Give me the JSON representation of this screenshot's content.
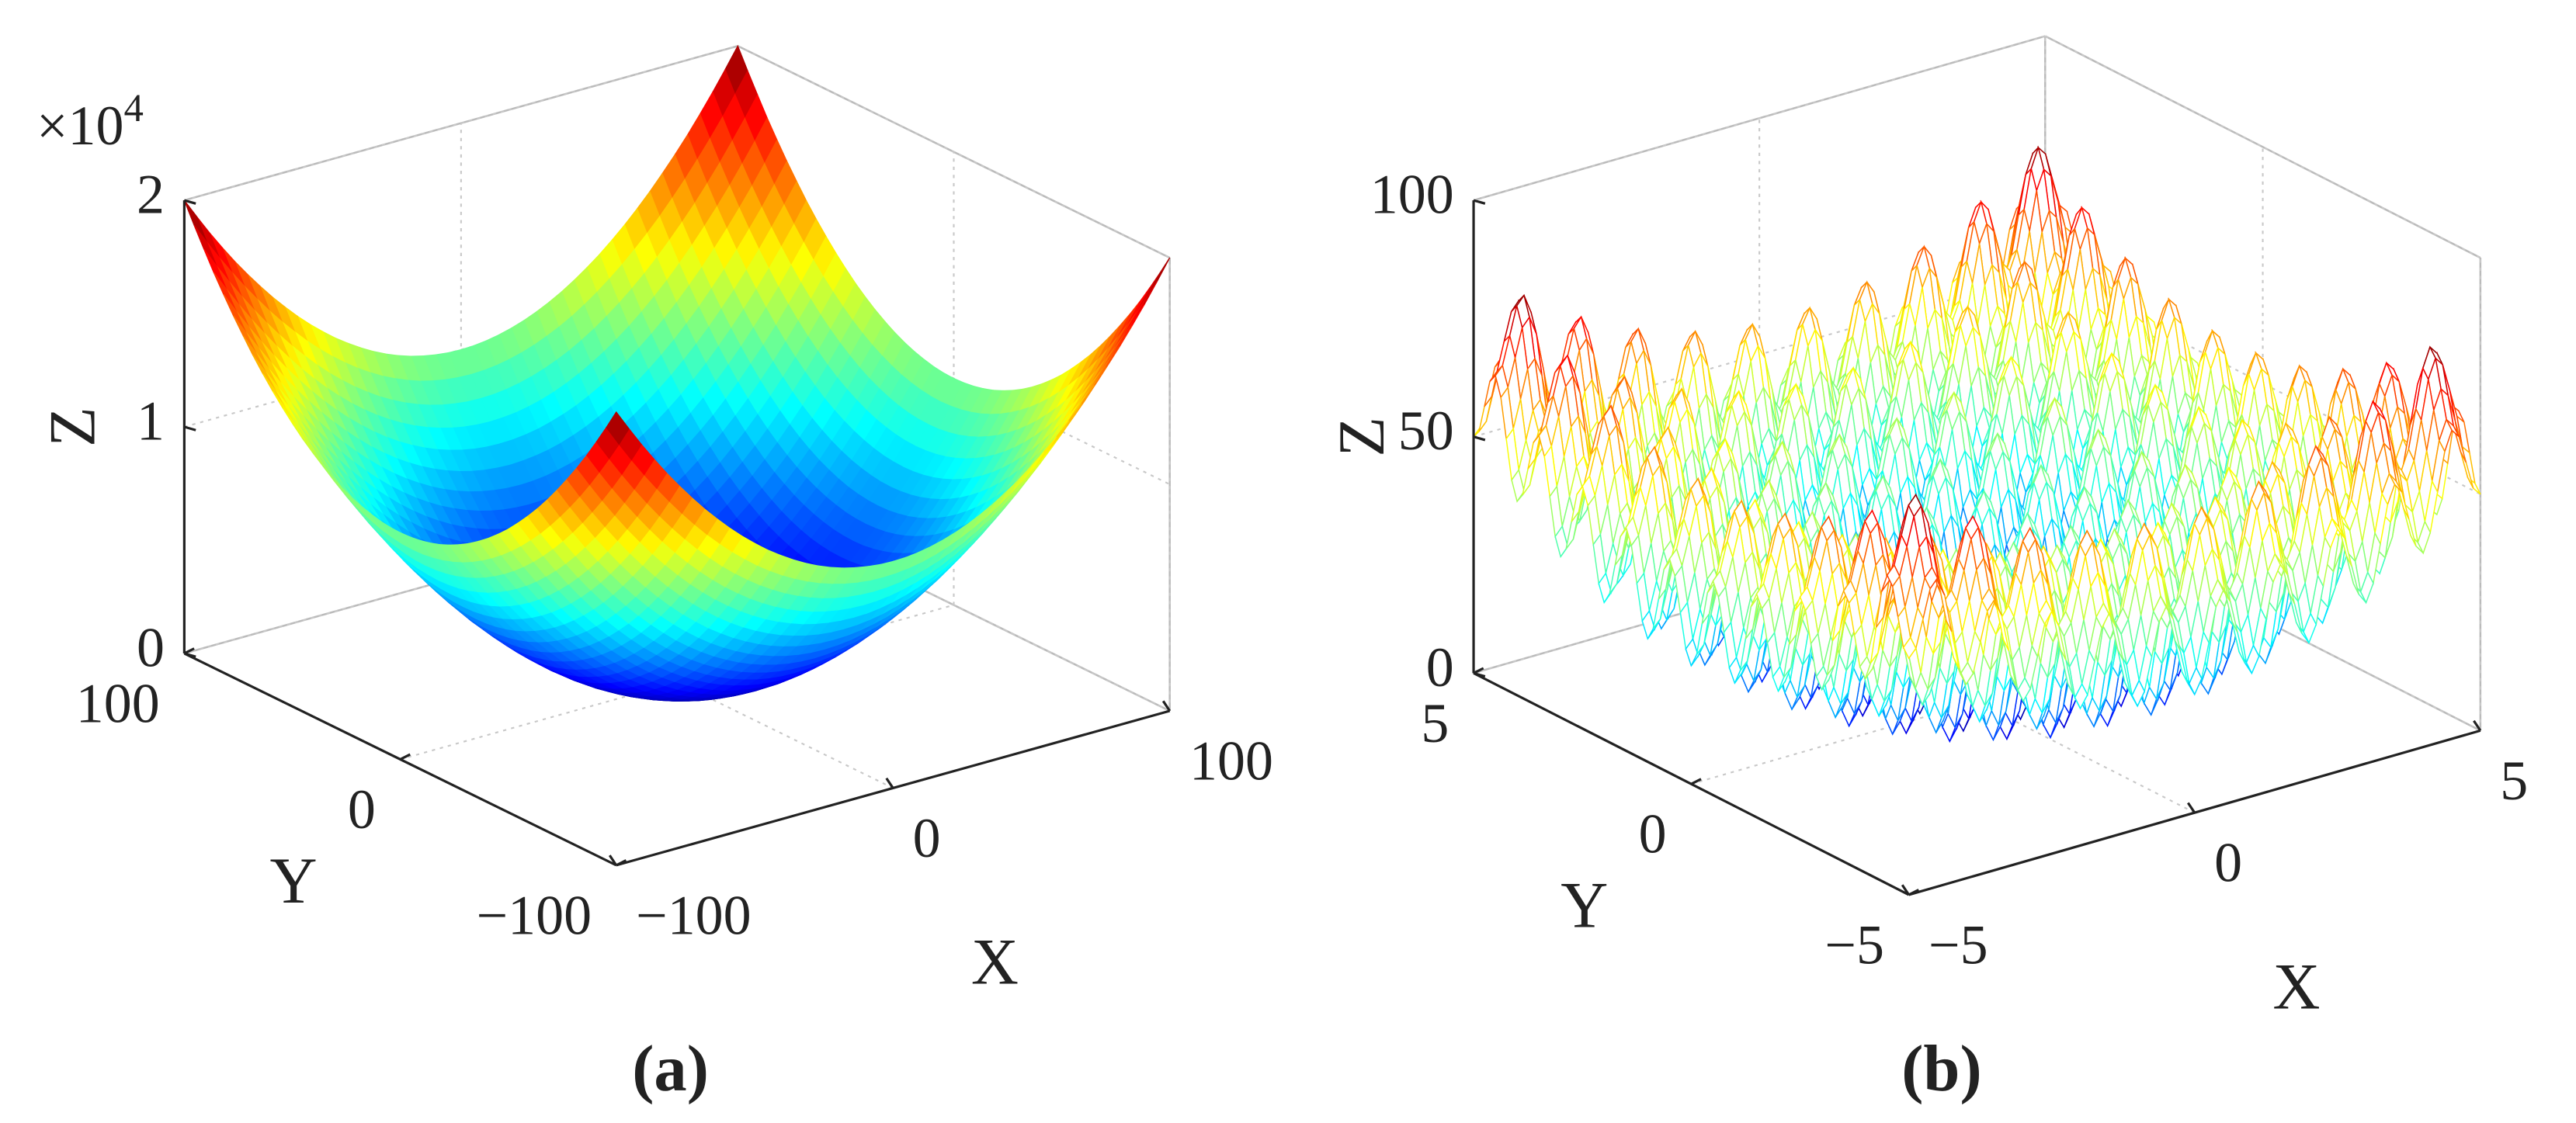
{
  "chart_data": [
    {
      "type": "surface",
      "panel_label": "(a)",
      "xlabel": "X",
      "ylabel": "Y",
      "zlabel": "Z",
      "xlim": [
        -100,
        100
      ],
      "xticks": [
        {
          "value": -100,
          "label": "−100"
        },
        0,
        100
      ],
      "ylim": [
        -100,
        100
      ],
      "yticks": [
        {
          "value": -100,
          "label": "−100"
        },
        0,
        100
      ],
      "zlim": [
        0,
        20000
      ],
      "zticks": [
        0,
        {
          "value": 10000,
          "label": "1"
        },
        {
          "value": 20000,
          "label": "2"
        }
      ],
      "z_multiplier": "×10",
      "z_exponent": "4",
      "grid": true,
      "colormap": "jet"
    },
    {
      "type": "mesh",
      "panel_label": "(b)",
      "xlabel": "X",
      "ylabel": "Y",
      "zlabel": "Z",
      "xlim": [
        -5,
        5
      ],
      "xticks": [
        {
          "value": -5,
          "label": "−5"
        },
        0,
        5
      ],
      "ylim": [
        -5,
        5
      ],
      "yticks": [
        {
          "value": -5,
          "label": "−5"
        },
        0,
        5
      ],
      "zlim": [
        0,
        100
      ],
      "zticks": [
        0,
        50,
        100
      ],
      "grid": true,
      "colormap": "jet"
    }
  ]
}
